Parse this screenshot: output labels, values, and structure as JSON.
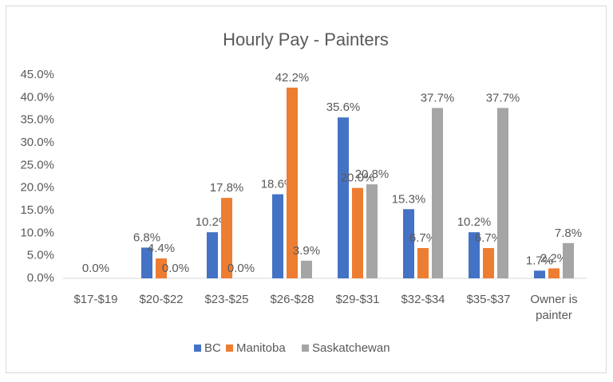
{
  "chart_data": {
    "type": "bar",
    "title": "Hourly Pay - Painters",
    "categories": [
      "$17-$19",
      "$20-$22",
      "$23-$25",
      "$26-$28",
      "$29-$31",
      "$32-$34",
      "$35-$37",
      "Owner is painter"
    ],
    "series": [
      {
        "name": "BC",
        "color": "#4472c4",
        "values": [
          null,
          6.8,
          10.2,
          18.6,
          35.6,
          15.3,
          10.2,
          1.7
        ],
        "value_labels": [
          null,
          "6.8%",
          "10.2%",
          "18.6%",
          "35.6%",
          "15.3%",
          "10.2%",
          "1.7%"
        ]
      },
      {
        "name": "Manitoba",
        "color": "#ed7d31",
        "values": [
          0.0,
          4.4,
          17.8,
          42.2,
          20.0,
          6.7,
          6.7,
          2.2
        ],
        "value_labels": [
          "0.0%",
          "4.4%",
          "17.8%",
          "42.2%",
          "20.0%",
          "6.7%",
          "6.7%",
          "2.2%"
        ]
      },
      {
        "name": "Saskatchewan",
        "color": "#a5a5a5",
        "values": [
          null,
          0.0,
          0.0,
          3.9,
          20.8,
          37.7,
          37.7,
          7.8
        ],
        "value_labels": [
          null,
          "0.0%",
          "0.0%",
          "3.9%",
          "20.8%",
          "37.7%",
          "37.7%",
          "7.8%"
        ]
      }
    ],
    "ylim": [
      0,
      45
    ],
    "yticks": [
      {
        "value": 0,
        "label": "0.0%"
      },
      {
        "value": 5,
        "label": "5.0%"
      },
      {
        "value": 10,
        "label": "10.0%"
      },
      {
        "value": 15,
        "label": "15.0%"
      },
      {
        "value": 20,
        "label": "20.0%"
      },
      {
        "value": 25,
        "label": "25.0%"
      },
      {
        "value": 30,
        "label": "30.0%"
      },
      {
        "value": 35,
        "label": "35.0%"
      },
      {
        "value": 40,
        "label": "40.0%"
      },
      {
        "value": 45,
        "label": "45.0%"
      }
    ],
    "grid": false,
    "legend": "bottom"
  }
}
